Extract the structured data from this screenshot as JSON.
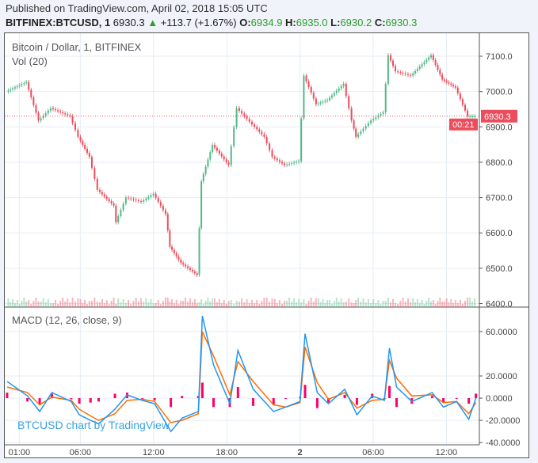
{
  "header": {
    "published": "Published on TradingView.com, April 02, 2018 15:05 UTC",
    "symbol": "BITFINEX:BTCUSD, 1",
    "last": "6930.3",
    "change": "+113.7 (+1.67%)",
    "o_label": "O:",
    "o": "6934.9",
    "h_label": "H:",
    "h": "6935.0",
    "l_label": "L:",
    "l": "6930.2",
    "c_label": "C:",
    "c": "6930.3"
  },
  "legend": {
    "main": "Bitcoin / Dollar, 1, BITFINEX",
    "volume": "Vol (20)",
    "macd": "MACD (12, 26, close, 9)"
  },
  "watermark": "BTCUSD chart by TradingView",
  "colors": {
    "up": "#53b987",
    "down": "#eb4d5c",
    "macd": "#2196f3",
    "signal": "#ff6d00",
    "hist": "#ff0066",
    "price_label": "#eb4d5c"
  },
  "price_label": "6930.3",
  "countdown": "00:21",
  "chart_data": [
    {
      "type": "candlestick",
      "title": "Bitcoin / Dollar, 1, BITFINEX",
      "y_ticks": [
        "7100.0",
        "7000.0",
        "6900.0",
        "6800.0",
        "6700.0",
        "6600.0",
        "6500.0",
        "6400.0"
      ],
      "ylim": [
        6390,
        7165
      ],
      "x_ticks": [
        {
          "label": "01:00",
          "t": "04-01 01:00"
        },
        {
          "label": "06:00",
          "t": "04-01 06:00"
        },
        {
          "label": "12:00",
          "t": "04-01 12:00"
        },
        {
          "label": "18:00",
          "t": "04-01 18:00"
        },
        {
          "label": "2",
          "t": "04-02 00:00"
        },
        {
          "label": "06:00",
          "t": "04-02 06:00"
        },
        {
          "label": "12:00",
          "t": "04-02 12:00"
        }
      ],
      "close": [
        [
          "04-01 00:00",
          7000
        ],
        [
          "04-01 01:40",
          7027
        ],
        [
          "04-01 02:40",
          6918
        ],
        [
          "04-01 03:40",
          6953
        ],
        [
          "04-01 05:15",
          6930
        ],
        [
          "04-01 05:55",
          6872
        ],
        [
          "04-01 06:50",
          6815
        ],
        [
          "04-01 07:30",
          6722
        ],
        [
          "04-01 08:50",
          6677
        ],
        [
          "04-01 09:00",
          6630
        ],
        [
          "04-01 09:50",
          6700
        ],
        [
          "04-01 11:05",
          6688
        ],
        [
          "04-01 12:05",
          6711
        ],
        [
          "04-01 13:05",
          6653
        ],
        [
          "04-01 13:25",
          6561
        ],
        [
          "04-01 14:20",
          6515
        ],
        [
          "04-01 15:40",
          6481
        ],
        [
          "04-01 16:00",
          6746
        ],
        [
          "04-01 16:55",
          6849
        ],
        [
          "04-01 18:15",
          6792
        ],
        [
          "04-01 18:55",
          6953
        ],
        [
          "04-01 20:10",
          6907
        ],
        [
          "04-01 21:10",
          6872
        ],
        [
          "04-01 21:50",
          6815
        ],
        [
          "04-01 22:50",
          6792
        ],
        [
          "04-02 00:00",
          6803
        ],
        [
          "04-02 00:25",
          7045
        ],
        [
          "04-02 01:25",
          6964
        ],
        [
          "04-02 02:20",
          6976
        ],
        [
          "04-02 03:40",
          7022
        ],
        [
          "04-02 04:20",
          6918
        ],
        [
          "04-02 04:40",
          6872
        ],
        [
          "04-02 05:55",
          6918
        ],
        [
          "04-02 06:55",
          6941
        ],
        [
          "04-02 07:20",
          7103
        ],
        [
          "04-02 07:55",
          7057
        ],
        [
          "04-02 09:10",
          7045
        ],
        [
          "04-02 10:50",
          7103
        ],
        [
          "04-02 11:45",
          7034
        ],
        [
          "04-02 12:50",
          7011
        ],
        [
          "04-02 13:50",
          6930
        ],
        [
          "04-02 14:25",
          6930
        ]
      ]
    },
    {
      "type": "line",
      "title": "MACD (12, 26, close, 9)",
      "y_ticks": [
        "60.0000",
        "20.0000",
        "0.0000",
        "-20.0000",
        "-40.0000"
      ],
      "y_tick_values": [
        60,
        20,
        0,
        -20,
        -40
      ],
      "ylim": [
        -42,
        82
      ],
      "series": [
        {
          "key": "macd",
          "points": [
            [
              "04-01 00:00",
              15
            ],
            [
              "04-01 01:40",
              2
            ],
            [
              "04-01 02:40",
              -12
            ],
            [
              "04-01 03:40",
              5
            ],
            [
              "04-01 05:15",
              -3
            ],
            [
              "04-01 05:55",
              -15
            ],
            [
              "04-01 06:50",
              -20
            ],
            [
              "04-01 07:30",
              -23
            ],
            [
              "04-01 08:50",
              -10
            ],
            [
              "04-01 09:50",
              3
            ],
            [
              "04-01 11:05",
              -2
            ],
            [
              "04-01 12:05",
              -5
            ],
            [
              "04-01 13:25",
              -30
            ],
            [
              "04-01 14:20",
              -18
            ],
            [
              "04-01 15:40",
              -12
            ],
            [
              "04-01 16:00",
              74
            ],
            [
              "04-01 16:55",
              30
            ],
            [
              "04-01 18:15",
              -5
            ],
            [
              "04-01 18:55",
              43
            ],
            [
              "04-01 20:10",
              8
            ],
            [
              "04-01 21:50",
              -12
            ],
            [
              "04-01 22:50",
              -8
            ],
            [
              "04-02 00:00",
              -3
            ],
            [
              "04-02 00:25",
              58
            ],
            [
              "04-02 01:25",
              5
            ],
            [
              "04-02 02:20",
              -5
            ],
            [
              "04-02 03:40",
              8
            ],
            [
              "04-02 04:40",
              -15
            ],
            [
              "04-02 05:55",
              2
            ],
            [
              "04-02 06:55",
              -2
            ],
            [
              "04-02 07:20",
              45
            ],
            [
              "04-02 07:55",
              10
            ],
            [
              "04-02 09:10",
              -3
            ],
            [
              "04-02 10:50",
              5
            ],
            [
              "04-02 11:45",
              -8
            ],
            [
              "04-02 12:50",
              -3
            ],
            [
              "04-02 13:50",
              -19
            ],
            [
              "04-02 14:25",
              0
            ]
          ]
        },
        {
          "key": "signal",
          "points": [
            [
              "04-01 00:00",
              10
            ],
            [
              "04-01 01:40",
              5
            ],
            [
              "04-01 02:40",
              -6
            ],
            [
              "04-01 03:40",
              1
            ],
            [
              "04-01 05:15",
              -2
            ],
            [
              "04-01 05:55",
              -10
            ],
            [
              "04-01 06:50",
              -16
            ],
            [
              "04-01 07:30",
              -20
            ],
            [
              "04-01 08:50",
              -14
            ],
            [
              "04-01 09:50",
              -2
            ],
            [
              "04-01 11:05",
              -1
            ],
            [
              "04-01 12:05",
              -3
            ],
            [
              "04-01 13:25",
              -22
            ],
            [
              "04-01 14:20",
              -20
            ],
            [
              "04-01 15:40",
              -14
            ],
            [
              "04-01 16:00",
              60
            ],
            [
              "04-01 16:55",
              38
            ],
            [
              "04-01 18:15",
              3
            ],
            [
              "04-01 18:55",
              33
            ],
            [
              "04-01 20:10",
              15
            ],
            [
              "04-01 21:50",
              -6
            ],
            [
              "04-01 22:50",
              -8
            ],
            [
              "04-02 00:00",
              -4
            ],
            [
              "04-02 00:25",
              46
            ],
            [
              "04-02 01:25",
              14
            ],
            [
              "04-02 02:20",
              -1
            ],
            [
              "04-02 03:40",
              5
            ],
            [
              "04-02 04:40",
              -9
            ],
            [
              "04-02 05:55",
              -2
            ],
            [
              "04-02 06:55",
              -1
            ],
            [
              "04-02 07:20",
              34
            ],
            [
              "04-02 07:55",
              18
            ],
            [
              "04-02 09:10",
              2
            ],
            [
              "04-02 10:50",
              3
            ],
            [
              "04-02 11:45",
              -4
            ],
            [
              "04-02 12:50",
              -3
            ],
            [
              "04-02 13:50",
              -14
            ],
            [
              "04-02 14:25",
              -4
            ]
          ]
        }
      ]
    }
  ]
}
